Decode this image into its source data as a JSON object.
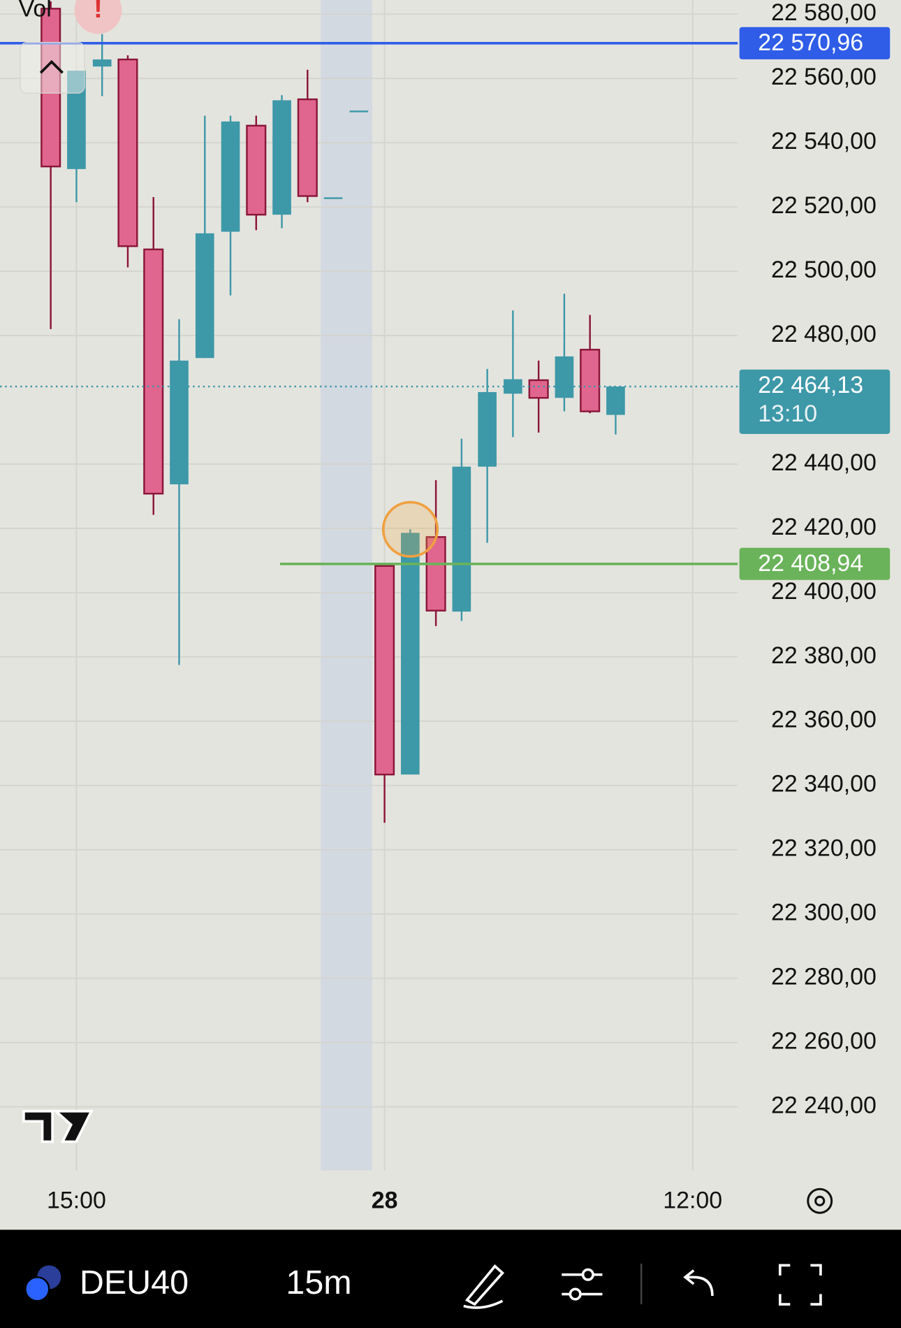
{
  "indicator_label": "Vol",
  "chart_data": {
    "type": "candlestick",
    "symbol": "DEU40",
    "interval": "15m",
    "categories": [
      null,
      null,
      null,
      null,
      null,
      null,
      null,
      null,
      null,
      null,
      null,
      null,
      null,
      null,
      null,
      null,
      null,
      null,
      null,
      null,
      null,
      null,
      null,
      null
    ],
    "candles": [
      {
        "open": 22581.7,
        "high": 22584.0,
        "low": 22482.0,
        "close": 22532.6
      },
      {
        "open": 22531.8,
        "high": 22562.4,
        "low": 22521.5,
        "close": 22562.4
      },
      {
        "open": 22563.7,
        "high": 22573.8,
        "low": 22554.5,
        "close": 22565.9
      },
      {
        "open": 22565.9,
        "high": 22567.2,
        "low": 22501.2,
        "close": 22507.8
      },
      {
        "open": 22506.8,
        "high": 22523.1,
        "low": 22424.2,
        "close": 22430.8
      },
      {
        "open": 22433.7,
        "high": 22485.1,
        "low": 22377.5,
        "close": 22472.2
      },
      {
        "open": 22473.0,
        "high": 22548.4,
        "low": 22473.0,
        "close": 22511.8
      },
      {
        "open": 22512.3,
        "high": 22548.4,
        "low": 22492.5,
        "close": 22546.6
      },
      {
        "open": 22545.3,
        "high": 22548.4,
        "low": 22512.8,
        "close": 22517.6
      },
      {
        "open": 22517.6,
        "high": 22554.8,
        "low": 22513.4,
        "close": 22553.2
      },
      {
        "open": 22553.5,
        "high": 22562.7,
        "low": 22521.5,
        "close": 22523.4
      },
      {
        "open": 22523.0,
        "high": 22523.0,
        "low": 22523.0,
        "close": 22523.0
      },
      {
        "open": 22550.0,
        "high": 22550.0,
        "low": 22550.0,
        "close": 22550.0
      },
      {
        "open": 22408.3,
        "high": 22408.3,
        "low": 22328.4,
        "close": 22343.4
      },
      {
        "open": 22343.4,
        "high": 22419.7,
        "low": 22343.4,
        "close": 22418.6
      },
      {
        "open": 22417.3,
        "high": 22435.0,
        "low": 22389.6,
        "close": 22394.4
      },
      {
        "open": 22394.1,
        "high": 22447.9,
        "low": 22391.2,
        "close": 22439.2
      },
      {
        "open": 22439.2,
        "high": 22469.6,
        "low": 22415.5,
        "close": 22462.4
      },
      {
        "open": 22461.9,
        "high": 22487.8,
        "low": 22448.4,
        "close": 22466.4
      },
      {
        "open": 22466.1,
        "high": 22472.2,
        "low": 22449.8,
        "close": 22460.6
      },
      {
        "open": 22460.6,
        "high": 22493.0,
        "low": 22456.4,
        "close": 22473.5
      },
      {
        "open": 22475.6,
        "high": 22486.4,
        "low": 22455.8,
        "close": 22456.4
      },
      {
        "open": 22455.3,
        "high": 22464.13,
        "low": 22449.2,
        "close": 22464.13
      }
    ],
    "up_color": "#3d98a8",
    "down_color": "#e0668f",
    "ylim": [
      22220.2,
      22584.4
    ],
    "yticks": [
      {
        "value": 22240,
        "label": "22 240,00"
      },
      {
        "value": 22260,
        "label": "22 260,00"
      },
      {
        "value": 22280,
        "label": "22 280,00"
      },
      {
        "value": 22300,
        "label": "22 300,00"
      },
      {
        "value": 22320,
        "label": "22 320,00"
      },
      {
        "value": 22340,
        "label": "22 340,00"
      },
      {
        "value": 22360,
        "label": "22 360,00"
      },
      {
        "value": 22380,
        "label": "22 380,00"
      },
      {
        "value": 22400,
        "label": "22 400,00"
      },
      {
        "value": 22420,
        "label": "22 420,00"
      },
      {
        "value": 22440,
        "label": "22 440,00"
      },
      {
        "value": 22480,
        "label": "22 480,00"
      },
      {
        "value": 22500,
        "label": "22 500,00"
      },
      {
        "value": 22520,
        "label": "22 520,00"
      },
      {
        "value": 22540,
        "label": "22 540,00"
      },
      {
        "value": 22560,
        "label": "22 560,00"
      },
      {
        "value": 22580,
        "label": "22 580,00"
      }
    ],
    "xticks": [
      {
        "value": 1,
        "label": "15:00"
      },
      {
        "value": 13,
        "label": "28"
      },
      {
        "value": 25,
        "label": "12:00"
      }
    ],
    "grid": true,
    "price_lines": [
      {
        "value": 22570.96,
        "label": "22 570,96",
        "color": "#2f5de8"
      },
      {
        "value": 22408.94,
        "label": "22 408,94",
        "color": "#6ab35a"
      }
    ],
    "last_price": {
      "value": 22464.13,
      "label": "22 464,13",
      "countdown": "13:10",
      "color": "#3d98a8"
    }
  }
}
